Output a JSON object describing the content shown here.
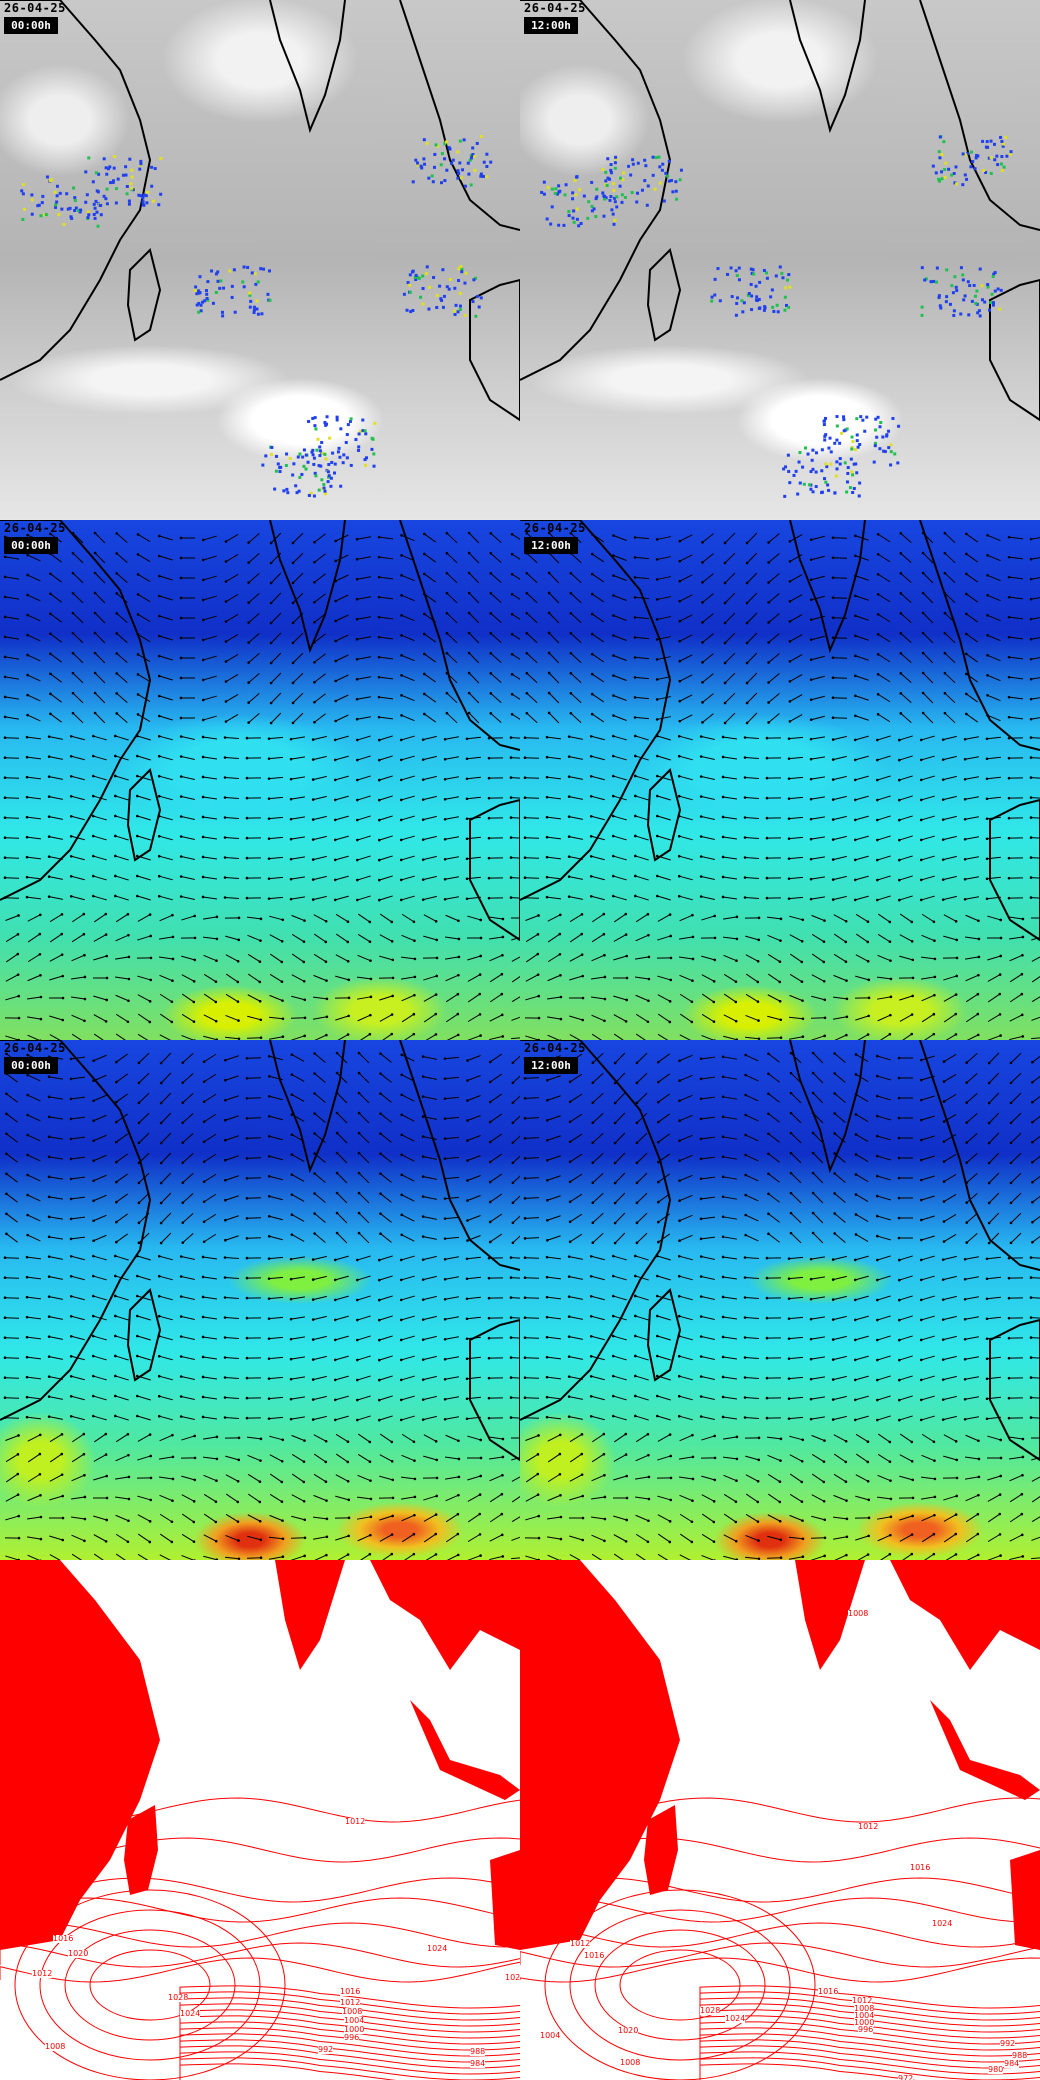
{
  "panels": [
    {
      "type": "satellite",
      "date": "26-04-25",
      "time": "00:00h"
    },
    {
      "type": "satellite",
      "date": "26-04-25",
      "time": "12:00h"
    },
    {
      "type": "wind",
      "date": "26-04-25",
      "time": "00:00h"
    },
    {
      "type": "wind",
      "date": "26-04-25",
      "time": "12:00h"
    },
    {
      "type": "wind-upper",
      "date": "26-04-25",
      "time": "00:00h"
    },
    {
      "type": "wind-upper",
      "date": "26-04-25",
      "time": "12:00h"
    },
    {
      "type": "pressure",
      "contour_labels": [
        "1012",
        "1024",
        "1020",
        "1028",
        "1024",
        "1016",
        "1012",
        "1008",
        "1004",
        "1000",
        "996",
        "992",
        "988",
        "984",
        "1008",
        "1016",
        "1020",
        "1012"
      ]
    },
    {
      "type": "pressure",
      "contour_labels": [
        "1008",
        "1012",
        "1016",
        "1024",
        "1016",
        "1012",
        "1008",
        "1004",
        "1000",
        "996",
        "1028",
        "1024",
        "1020",
        "1004",
        "1008",
        "1012",
        "1016",
        "992",
        "988",
        "984",
        "980",
        "972"
      ]
    }
  ],
  "colors": {
    "pressure_contour": "#ff0000",
    "coastline": "#000000",
    "wind_arrow": "#000000"
  }
}
